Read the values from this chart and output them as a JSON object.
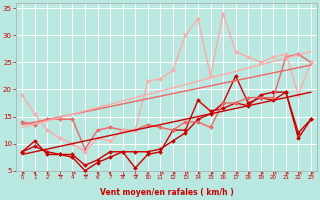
{
  "background_color": "#b8e8e0",
  "grid_color": "#ffffff",
  "xlabel": "Vent moyen/en rafales ( km/h )",
  "xlabel_color": "#cc0000",
  "tick_color": "#cc0000",
  "xlim": [
    -0.5,
    23.5
  ],
  "ylim": [
    5,
    36
  ],
  "yticks": [
    5,
    10,
    15,
    20,
    25,
    30,
    35
  ],
  "xticks": [
    0,
    1,
    2,
    3,
    4,
    5,
    6,
    7,
    8,
    9,
    10,
    11,
    12,
    13,
    14,
    15,
    16,
    17,
    18,
    19,
    20,
    21,
    22,
    23
  ],
  "lines": [
    {
      "comment": "dark red line 1 - lower zigzag",
      "x": [
        0,
        1,
        2,
        3,
        4,
        5,
        6,
        7,
        8,
        9,
        10,
        11,
        12,
        13,
        14,
        15,
        16,
        17,
        18,
        19,
        20,
        21,
        22,
        23
      ],
      "y": [
        8.5,
        9.5,
        8.5,
        8.0,
        8.0,
        6.0,
        7.0,
        8.5,
        8.5,
        8.5,
        8.5,
        9.0,
        10.5,
        12.0,
        14.5,
        15.5,
        17.5,
        22.5,
        17.5,
        18.5,
        18.0,
        19.5,
        11.0,
        14.5
      ],
      "color": "#cc0000",
      "lw": 1.0,
      "marker": "D",
      "ms": 2.0,
      "alpha": 1.0,
      "linestyle": "-"
    },
    {
      "comment": "dark red line 2 - dips to ~5 at x=5",
      "x": [
        0,
        1,
        2,
        3,
        4,
        5,
        6,
        7,
        8,
        9,
        10,
        11,
        12,
        13,
        14,
        15,
        16,
        17,
        18,
        19,
        20,
        21,
        22,
        23
      ],
      "y": [
        8.5,
        10.5,
        8.0,
        8.0,
        7.5,
        5.0,
        6.5,
        7.5,
        8.5,
        5.5,
        8.0,
        8.5,
        12.5,
        12.5,
        18.0,
        16.0,
        16.5,
        17.5,
        17.0,
        19.0,
        19.5,
        19.5,
        12.0,
        14.5
      ],
      "color": "#cc0000",
      "lw": 1.0,
      "marker": "D",
      "ms": 2.0,
      "alpha": 1.0,
      "linestyle": "-"
    },
    {
      "comment": "medium pink line - starts ~14, dips, rises to 26",
      "x": [
        0,
        1,
        2,
        3,
        4,
        5,
        6,
        7,
        8,
        9,
        10,
        11,
        12,
        13,
        14,
        15,
        16,
        17,
        18,
        19,
        20,
        21,
        22,
        23
      ],
      "y": [
        14.0,
        13.5,
        14.5,
        14.5,
        14.5,
        9.0,
        12.5,
        13.0,
        12.5,
        12.5,
        13.5,
        13.0,
        12.5,
        14.0,
        14.0,
        13.0,
        17.5,
        17.5,
        18.5,
        18.5,
        18.5,
        26.0,
        26.5,
        25.0
      ],
      "color": "#ee6666",
      "lw": 1.0,
      "marker": "D",
      "ms": 2.0,
      "alpha": 1.0,
      "linestyle": "-"
    },
    {
      "comment": "light pink line - starts ~19, rises steeply with spike to 34",
      "x": [
        0,
        1,
        2,
        3,
        4,
        5,
        6,
        7,
        8,
        9,
        10,
        11,
        12,
        13,
        14,
        15,
        16,
        17,
        18,
        19,
        20,
        21,
        22,
        23
      ],
      "y": [
        19.0,
        15.5,
        12.5,
        11.0,
        10.0,
        8.5,
        11.0,
        10.5,
        12.5,
        12.5,
        21.5,
        22.0,
        23.5,
        30.0,
        33.0,
        22.5,
        34.0,
        27.0,
        26.0,
        25.0,
        26.0,
        26.5,
        19.0,
        25.0
      ],
      "color": "#ffaaaa",
      "lw": 1.0,
      "marker": "D",
      "ms": 2.0,
      "alpha": 1.0,
      "linestyle": "-"
    },
    {
      "comment": "dark red trend line (solid)",
      "x": [
        0,
        23
      ],
      "y": [
        8.0,
        19.5
      ],
      "color": "#cc0000",
      "lw": 1.0,
      "marker": null,
      "ms": 0,
      "alpha": 1.0,
      "linestyle": "-"
    },
    {
      "comment": "medium pink trend line (solid)",
      "x": [
        0,
        23
      ],
      "y": [
        13.5,
        24.5
      ],
      "color": "#ee6666",
      "lw": 1.0,
      "marker": null,
      "ms": 0,
      "alpha": 1.0,
      "linestyle": "-"
    },
    {
      "comment": "light pink trend line (solid)",
      "x": [
        0,
        23
      ],
      "y": [
        13.0,
        27.0
      ],
      "color": "#ffaaaa",
      "lw": 1.0,
      "marker": null,
      "ms": 0,
      "alpha": 1.0,
      "linestyle": "-"
    }
  ],
  "wind_symbols": {
    "y_data": 4.2,
    "color": "#cc0000",
    "x": [
      0,
      1,
      2,
      3,
      4,
      5,
      6,
      7,
      8,
      9,
      10,
      11,
      12,
      13,
      14,
      15,
      16,
      17,
      18,
      19,
      20,
      21,
      22,
      23
    ],
    "angles_deg": [
      45,
      315,
      315,
      270,
      45,
      90,
      315,
      315,
      90,
      90,
      0,
      45,
      45,
      45,
      45,
      45,
      45,
      45,
      45,
      45,
      45,
      45,
      45,
      45
    ]
  }
}
